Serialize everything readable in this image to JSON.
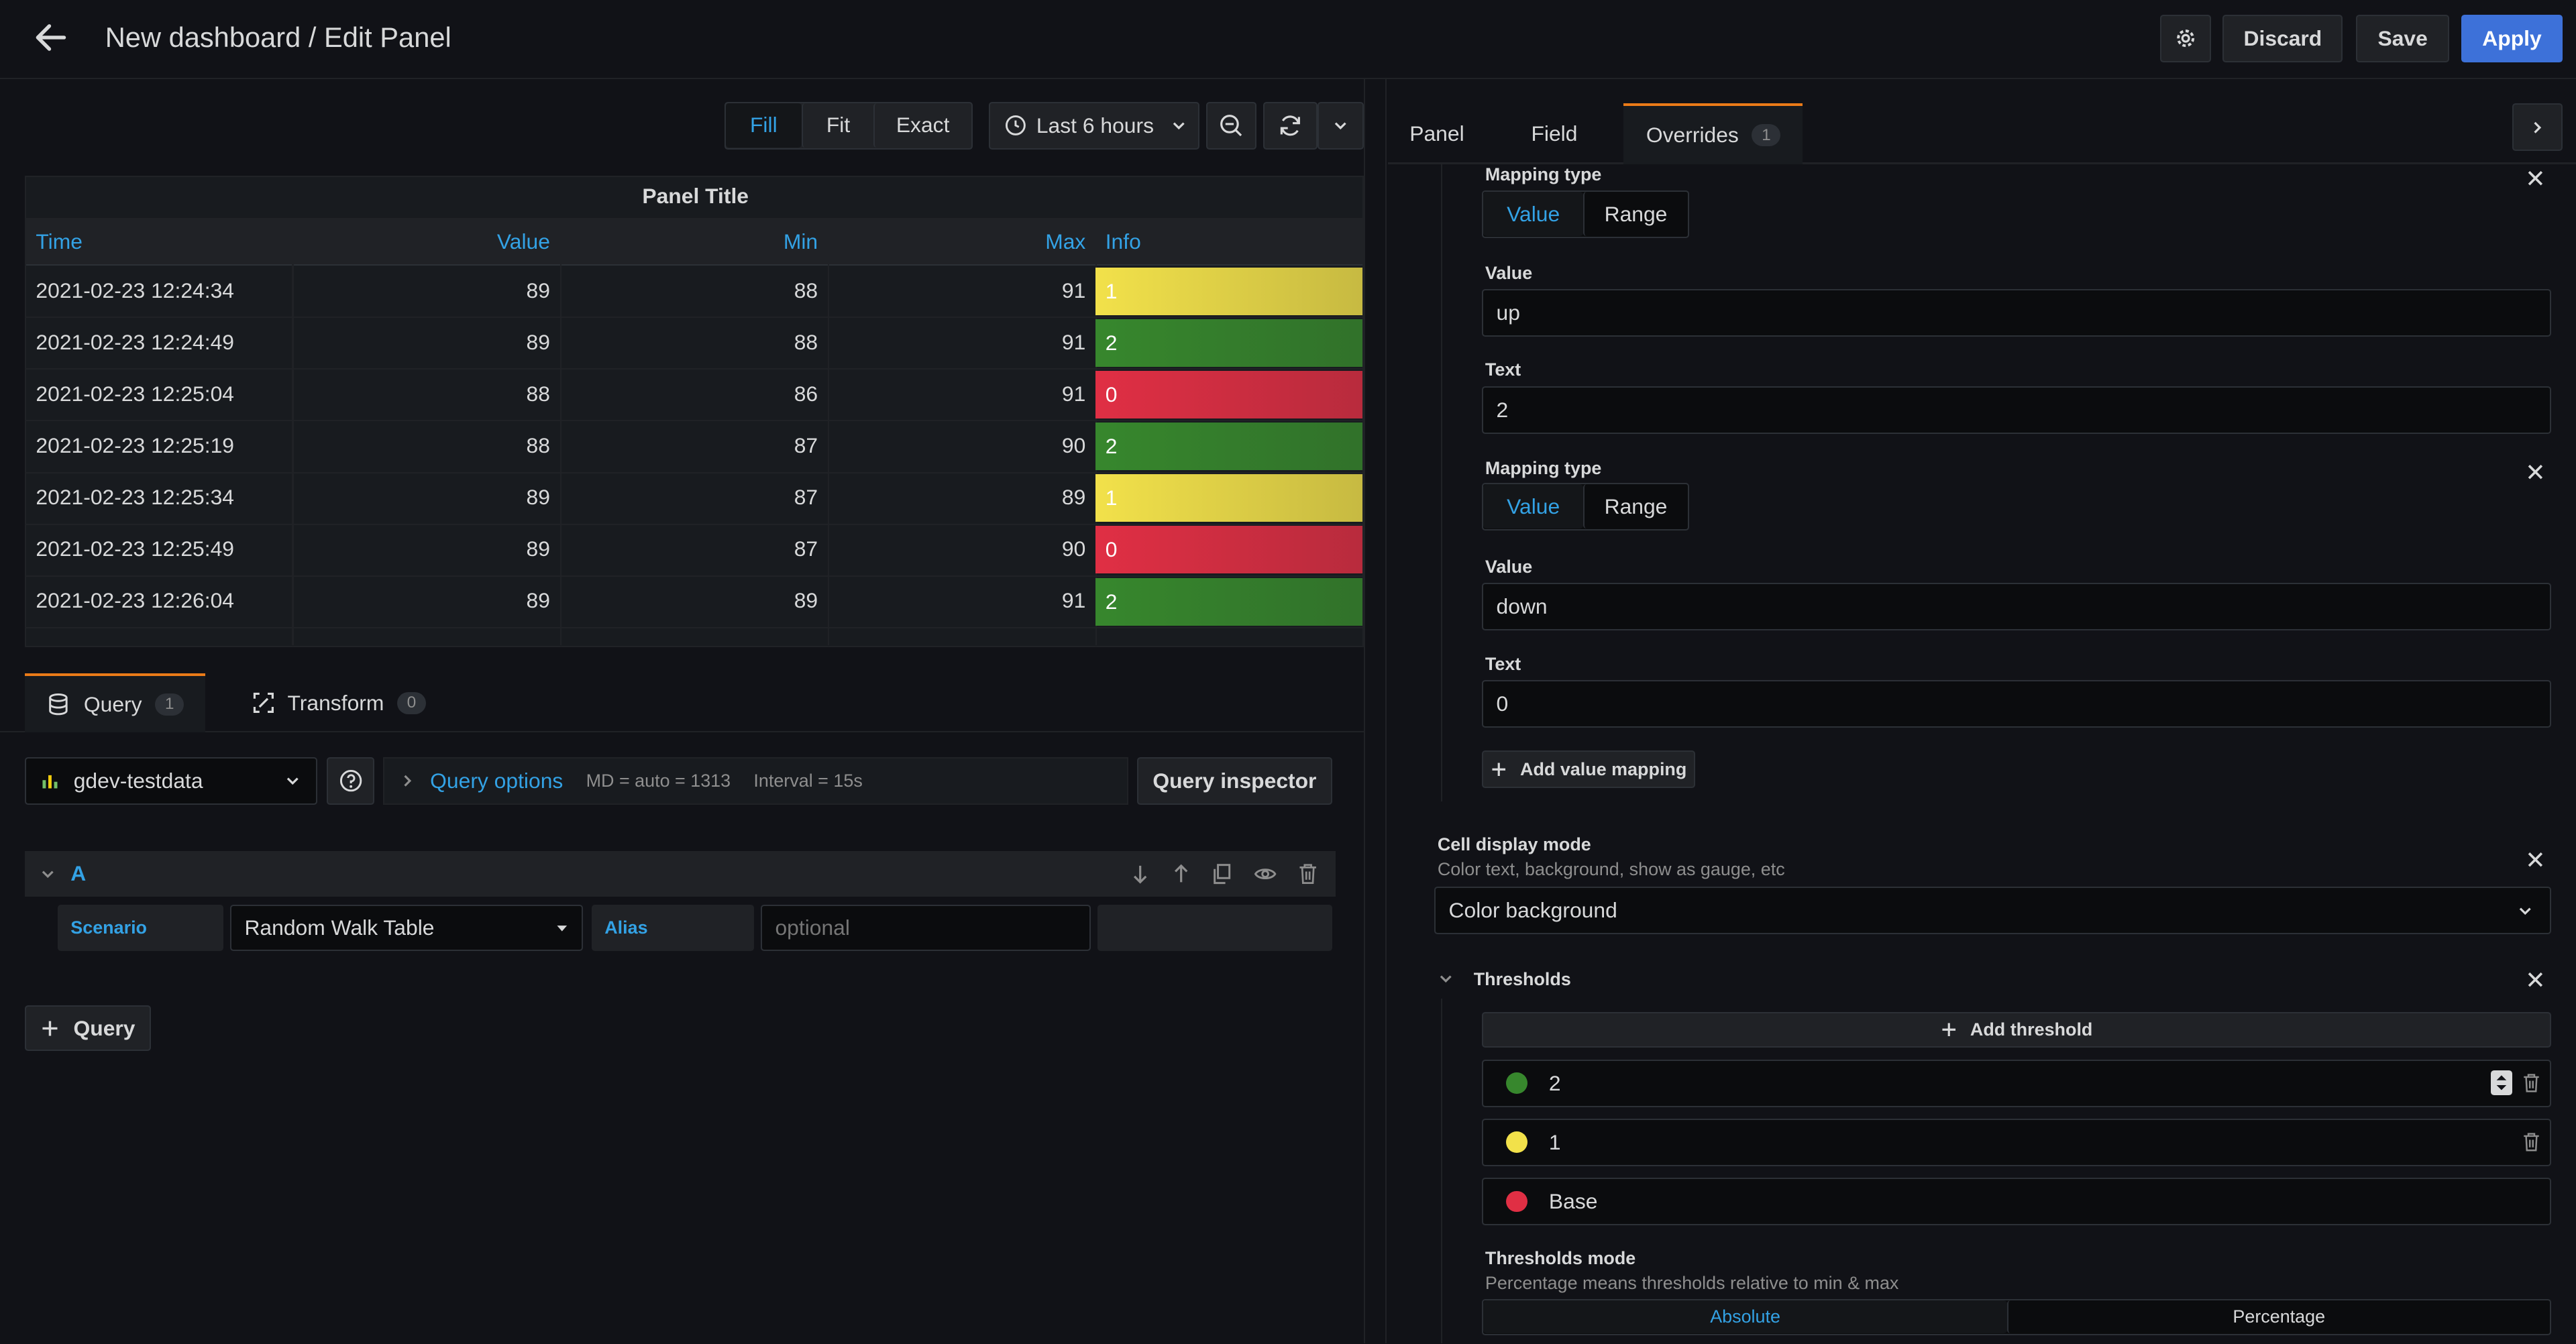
{
  "header": {
    "title": "New dashboard / Edit Panel",
    "discard": "Discard",
    "save": "Save",
    "apply": "Apply"
  },
  "toolbar": {
    "fill": "Fill",
    "fit": "Fit",
    "exact": "Exact",
    "time_range": "Last 6 hours"
  },
  "panel": {
    "title": "Panel Title",
    "columns": [
      "Time",
      "Value",
      "Min",
      "Max",
      "Info"
    ],
    "rows": [
      {
        "time": "2021-02-23 12:24:34",
        "value": "89",
        "min": "88",
        "max": "91",
        "info": "1",
        "color": "#f2e14a"
      },
      {
        "time": "2021-02-23 12:24:49",
        "value": "89",
        "min": "88",
        "max": "91",
        "info": "2",
        "color": "#37872d"
      },
      {
        "time": "2021-02-23 12:25:04",
        "value": "88",
        "min": "86",
        "max": "91",
        "info": "0",
        "color": "#e02f44"
      },
      {
        "time": "2021-02-23 12:25:19",
        "value": "88",
        "min": "87",
        "max": "90",
        "info": "2",
        "color": "#37872d"
      },
      {
        "time": "2021-02-23 12:25:34",
        "value": "89",
        "min": "87",
        "max": "89",
        "info": "1",
        "color": "#f2e14a"
      },
      {
        "time": "2021-02-23 12:25:49",
        "value": "89",
        "min": "87",
        "max": "90",
        "info": "0",
        "color": "#e02f44"
      },
      {
        "time": "2021-02-23 12:26:04",
        "value": "89",
        "min": "89",
        "max": "91",
        "info": "2",
        "color": "#37872d"
      }
    ]
  },
  "query_tabs": {
    "query_label": "Query",
    "query_count": "1",
    "transform_label": "Transform",
    "transform_count": "0"
  },
  "query": {
    "datasource": "gdev-testdata",
    "options_label": "Query options",
    "md": "MD = auto = 1313",
    "interval": "Interval = 15s",
    "inspector": "Query inspector",
    "ref_id": "A",
    "scenario_label": "Scenario",
    "scenario_value": "Random Walk Table",
    "alias_label": "Alias",
    "alias_placeholder": "optional",
    "add_query": "Query"
  },
  "options_tabs": {
    "panel": "Panel",
    "field": "Field",
    "overrides": "Overrides",
    "overrides_count": "1"
  },
  "mappings": [
    {
      "type_label": "Mapping type",
      "opt_value": "Value",
      "opt_range": "Range",
      "value_label": "Value",
      "value": "up",
      "text_label": "Text",
      "text": "2"
    },
    {
      "type_label": "Mapping type",
      "opt_value": "Value",
      "opt_range": "Range",
      "value_label": "Value",
      "value": "down",
      "text_label": "Text",
      "text": "0"
    }
  ],
  "add_value_mapping": "Add value mapping",
  "cell_display": {
    "label": "Cell display mode",
    "desc": "Color text, background, show as gauge, etc",
    "value": "Color background"
  },
  "thresholds": {
    "label": "Thresholds",
    "add": "Add threshold",
    "items": [
      {
        "value": "2",
        "color": "#37872d"
      },
      {
        "value": "1",
        "color": "#f2e14a"
      },
      {
        "value": "Base",
        "color": "#e02f44"
      }
    ],
    "mode_label": "Thresholds mode",
    "mode_desc": "Percentage means thresholds relative to min & max",
    "absolute": "Absolute",
    "percentage": "Percentage"
  },
  "colors": {
    "accent": "#3d71d9",
    "link": "#33a2e5",
    "tab_highlight": "#eb7b18"
  }
}
